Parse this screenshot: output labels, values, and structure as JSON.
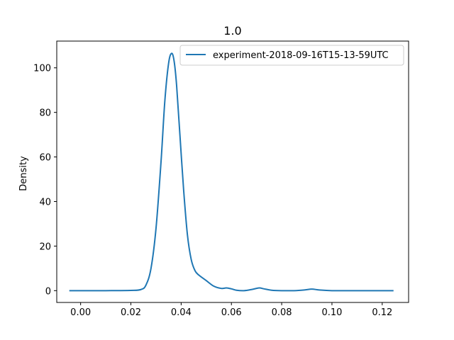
{
  "chart_data": {
    "type": "line",
    "title": "1.0",
    "xlabel": "",
    "ylabel": "Density",
    "xlim": [
      -0.0095,
      0.1305
    ],
    "ylim": [
      -5.3,
      112
    ],
    "x_ticks": [
      0.0,
      0.02,
      0.04,
      0.06,
      0.08,
      0.1,
      0.12
    ],
    "x_tick_labels": [
      "0.00",
      "0.02",
      "0.04",
      "0.06",
      "0.08",
      "0.10",
      "0.12"
    ],
    "y_ticks": [
      0,
      20,
      40,
      60,
      80,
      100
    ],
    "y_tick_labels": [
      "0",
      "20",
      "40",
      "60",
      "80",
      "100"
    ],
    "grid": false,
    "legend": {
      "position": "top-right"
    },
    "series": [
      {
        "name": "experiment-2018-09-16T15-13-59UTC",
        "color": "#1f77b4",
        "x": [
          -0.0045,
          0.0,
          0.01,
          0.02,
          0.024,
          0.026,
          0.028,
          0.03,
          0.032,
          0.0335,
          0.035,
          0.0362,
          0.0372,
          0.0382,
          0.0395,
          0.041,
          0.0425,
          0.044,
          0.0455,
          0.047,
          0.05,
          0.053,
          0.056,
          0.058,
          0.06,
          0.062,
          0.065,
          0.068,
          0.071,
          0.073,
          0.076,
          0.08,
          0.085,
          0.089,
          0.092,
          0.095,
          0.1,
          0.11,
          0.1245
        ],
        "y": [
          0.0,
          0.0,
          0.0,
          0.1,
          0.5,
          2.5,
          10.0,
          28.0,
          58.0,
          85.0,
          102.0,
          106.5,
          103.0,
          92.0,
          70.0,
          45.0,
          25.0,
          14.0,
          9.0,
          7.0,
          4.5,
          2.0,
          1.0,
          1.2,
          0.8,
          0.2,
          0.0,
          0.5,
          1.2,
          0.8,
          0.2,
          0.0,
          0.0,
          0.3,
          0.7,
          0.3,
          0.0,
          0.0,
          0.0
        ]
      }
    ]
  }
}
